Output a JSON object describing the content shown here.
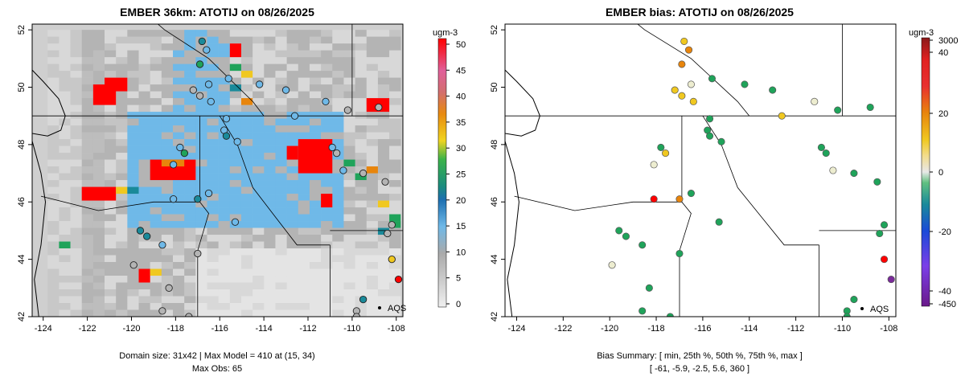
{
  "left_panel": {
    "title": "EMBER 36km: ATOTIJ on 08/26/2025",
    "colorbar_unit": "ugm-3",
    "colorbar_ticks": [
      "0",
      "5",
      "10",
      "15",
      "20",
      "25",
      "30",
      "35",
      "40",
      "45",
      "50"
    ],
    "footer_line1": "Domain size: 31x42 | Max Model = 410 at (15, 34)",
    "footer_line2": "Max Obs: 65",
    "legend_label": "AQS"
  },
  "right_panel": {
    "title": "EMBER bias: ATOTIJ on 08/26/2025",
    "colorbar_unit": "ugm-3",
    "colorbar_ticks": [
      "3000",
      "40",
      "20",
      "0",
      "-20",
      "-40",
      "-450"
    ],
    "footer_line1": "Bias Summary: [ min, 25th %, 50th %, 75th %, max ]",
    "footer_line2": "[ -61,   -5.9,   -2.5,   5.6,   360 ]",
    "legend_label": "AQS"
  },
  "x_ticks": [
    "-124",
    "-122",
    "-120",
    "-118",
    "-116",
    "-114",
    "-112",
    "-110",
    "-108"
  ],
  "y_ticks": [
    "42",
    "44",
    "46",
    "48",
    "50",
    "52"
  ],
  "chart_data": {
    "type": "heatmap",
    "lon_range": [
      -124.5,
      -107.7
    ],
    "lat_range": [
      42.0,
      52.2
    ],
    "colors": {
      "high": "#ff0000",
      "orange": "#e8850c",
      "yellow": "#f0c820",
      "green": "#1fa35a",
      "teal": "#1a8a9a",
      "blue_low": "#6fb9e8",
      "gray": "#b4b4b4",
      "light": "#d8d8d8"
    },
    "stations": [
      {
        "lon": -116.8,
        "lat": 51.6,
        "obs": "teal",
        "bias": "yellow"
      },
      {
        "lon": -116.6,
        "lat": 51.3,
        "obs": "blue_low",
        "bias": "orange"
      },
      {
        "lon": -116.9,
        "lat": 50.8,
        "obs": "green",
        "bias": "orange"
      },
      {
        "lon": -116.5,
        "lat": 50.1,
        "obs": "blue_low",
        "bias": "light"
      },
      {
        "lon": -117.2,
        "lat": 49.9,
        "obs": "gray",
        "bias": "yellow"
      },
      {
        "lon": -116.9,
        "lat": 49.7,
        "obs": "gray",
        "bias": "yellow"
      },
      {
        "lon": -116.4,
        "lat": 49.5,
        "obs": "blue_low",
        "bias": "yellow"
      },
      {
        "lon": -115.6,
        "lat": 50.3,
        "obs": "blue_low",
        "bias": "green"
      },
      {
        "lon": -114.2,
        "lat": 50.1,
        "obs": "blue_low",
        "bias": "green"
      },
      {
        "lon": -113.0,
        "lat": 49.9,
        "obs": "blue_low",
        "bias": "green"
      },
      {
        "lon": -112.6,
        "lat": 49.0,
        "obs": "blue_low",
        "bias": "yellow"
      },
      {
        "lon": -111.2,
        "lat": 49.5,
        "obs": "blue_low",
        "bias": "light"
      },
      {
        "lon": -110.2,
        "lat": 49.2,
        "obs": "gray",
        "bias": "green"
      },
      {
        "lon": -108.8,
        "lat": 49.3,
        "obs": "gray",
        "bias": "green"
      },
      {
        "lon": -115.7,
        "lat": 48.9,
        "obs": "blue_low",
        "bias": "green"
      },
      {
        "lon": -115.8,
        "lat": 48.5,
        "obs": "blue_low",
        "bias": "green"
      },
      {
        "lon": -115.7,
        "lat": 48.3,
        "obs": "teal",
        "bias": "green"
      },
      {
        "lon": -115.2,
        "lat": 48.1,
        "obs": "blue_low",
        "bias": "green"
      },
      {
        "lon": -110.9,
        "lat": 47.9,
        "obs": "blue_low",
        "bias": "green"
      },
      {
        "lon": -110.7,
        "lat": 47.7,
        "obs": "gray",
        "bias": "green"
      },
      {
        "lon": -110.4,
        "lat": 47.1,
        "obs": "blue_low",
        "bias": "light"
      },
      {
        "lon": -109.5,
        "lat": 47.0,
        "obs": "gray",
        "bias": "green"
      },
      {
        "lon": -108.5,
        "lat": 46.7,
        "obs": "gray",
        "bias": "green"
      },
      {
        "lon": -117.8,
        "lat": 47.9,
        "obs": "blue_low",
        "bias": "green"
      },
      {
        "lon": -117.6,
        "lat": 47.7,
        "obs": "green",
        "bias": "yellow"
      },
      {
        "lon": -118.1,
        "lat": 47.3,
        "obs": "blue_low",
        "bias": "light"
      },
      {
        "lon": -118.1,
        "lat": 46.1,
        "obs": "blue_low",
        "bias": "high"
      },
      {
        "lon": -117.0,
        "lat": 46.1,
        "obs": "teal",
        "bias": "orange"
      },
      {
        "lon": -116.5,
        "lat": 46.3,
        "obs": "blue_low",
        "bias": "green"
      },
      {
        "lon": -115.3,
        "lat": 45.3,
        "obs": "blue_low",
        "bias": "green"
      },
      {
        "lon": -118.6,
        "lat": 44.5,
        "obs": "blue_low",
        "bias": "green"
      },
      {
        "lon": -119.6,
        "lat": 45.0,
        "obs": "teal",
        "bias": "green"
      },
      {
        "lon": -119.3,
        "lat": 44.8,
        "obs": "teal",
        "bias": "green"
      },
      {
        "lon": -117.0,
        "lat": 44.2,
        "obs": "gray",
        "bias": "green"
      },
      {
        "lon": -119.9,
        "lat": 43.8,
        "obs": "gray",
        "bias": "light"
      },
      {
        "lon": -118.6,
        "lat": 42.2,
        "obs": "gray",
        "bias": "green"
      },
      {
        "lon": -118.3,
        "lat": 43.0,
        "obs": "gray",
        "bias": "green"
      },
      {
        "lon": -117.4,
        "lat": 42.0,
        "obs": "gray",
        "bias": "green"
      },
      {
        "lon": -109.5,
        "lat": 42.6,
        "obs": "teal",
        "bias": "green"
      },
      {
        "lon": -109.8,
        "lat": 42.2,
        "obs": "gray",
        "bias": "green"
      },
      {
        "lon": -109.8,
        "lat": 42.0,
        "obs": "gray",
        "bias": "green"
      },
      {
        "lon": -108.2,
        "lat": 44.0,
        "obs": "yellow",
        "bias": "high"
      },
      {
        "lon": -107.9,
        "lat": 43.3,
        "obs": "high",
        "bias": "purple"
      },
      {
        "lon": -108.2,
        "lat": 45.2,
        "obs": "gray",
        "bias": "green"
      },
      {
        "lon": -108.4,
        "lat": 44.9,
        "obs": "gray",
        "bias": "green"
      }
    ]
  }
}
